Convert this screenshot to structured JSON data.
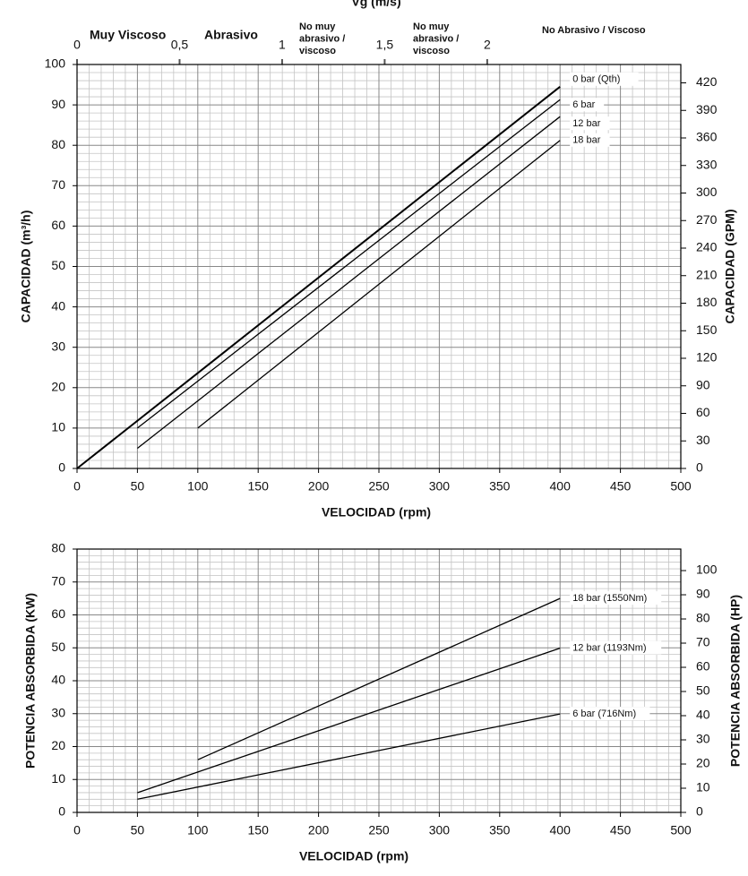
{
  "chart_data": [
    {
      "type": "line",
      "x_label": "VELOCIDAD (rpm)",
      "y_label": "CAPACIDAD   (m³/h)",
      "y2_label": "CAPACIDAD  (GPM)",
      "x2_label": "Vg (m/s)",
      "xlim": [
        0,
        500
      ],
      "xticks": [
        0,
        50,
        100,
        150,
        200,
        250,
        300,
        350,
        400,
        450,
        500
      ],
      "ylim": [
        0,
        100
      ],
      "yticks": [
        0,
        10,
        20,
        30,
        40,
        50,
        60,
        70,
        80,
        90,
        100
      ],
      "y2lim": [
        0,
        440
      ],
      "y2ticks": [
        0,
        30,
        60,
        90,
        120,
        150,
        180,
        210,
        240,
        270,
        300,
        330,
        360,
        390,
        420
      ],
      "x2lim": [
        0,
        2.944
      ],
      "x2ticks": [
        0,
        {
          "value": 0.5,
          "label": "0,5"
        },
        1,
        {
          "value": 1.5,
          "label": "1,5"
        },
        2
      ],
      "grid": true,
      "annotations": [
        {
          "lines": [
            "Muy Viscoso"
          ]
        },
        {
          "lines": [
            "Abrasivo"
          ]
        },
        {
          "lines": [
            "No muy",
            "abrasivo /",
            "viscoso"
          ]
        },
        {
          "lines": [
            "No muy",
            "abrasivo /",
            "viscoso"
          ]
        },
        {
          "lines": [
            "No Abrasivo / Viscoso"
          ]
        }
      ],
      "series": [
        {
          "name": "0 bar (Qth)",
          "color": "#000000",
          "x": [
            0,
            400
          ],
          "values": [
            0,
            94.5
          ]
        },
        {
          "name": "6 bar",
          "color": "#000000",
          "x": [
            50,
            400
          ],
          "values": [
            10,
            91.3
          ]
        },
        {
          "name": "12 bar",
          "color": "#000000",
          "x": [
            50,
            400
          ],
          "values": [
            5,
            87.1
          ]
        },
        {
          "name": "18 bar",
          "color": "#000000",
          "x": [
            100,
            400
          ],
          "values": [
            10,
            81.2
          ]
        }
      ]
    },
    {
      "type": "line",
      "x_label": "VELOCIDAD  (rpm)",
      "y_label": "POTENCIA ABSORBIDA (KW)",
      "y2_label": "POTENCIA ABSORBIDA   (HP)",
      "xlim": [
        0,
        500
      ],
      "xticks": [
        0,
        50,
        100,
        150,
        200,
        250,
        300,
        350,
        400,
        450,
        500
      ],
      "ylim": [
        0,
        80
      ],
      "yticks": [
        0,
        10,
        20,
        30,
        40,
        50,
        60,
        70,
        80
      ],
      "y2lim": [
        0,
        108.9
      ],
      "y2ticks": [
        0,
        10,
        20,
        30,
        40,
        50,
        60,
        70,
        80,
        90,
        100
      ],
      "grid": true,
      "series": [
        {
          "name": "18 bar (1550Nm)",
          "color": "#000000",
          "x": [
            100,
            400
          ],
          "values": [
            16,
            65
          ]
        },
        {
          "name": "12 bar (1193Nm)",
          "color": "#000000",
          "x": [
            50,
            400
          ],
          "values": [
            6,
            49.9
          ]
        },
        {
          "name": "6 bar (716Nm)",
          "color": "#000000",
          "x": [
            50,
            400
          ],
          "values": [
            4,
            29.9
          ]
        }
      ]
    }
  ]
}
